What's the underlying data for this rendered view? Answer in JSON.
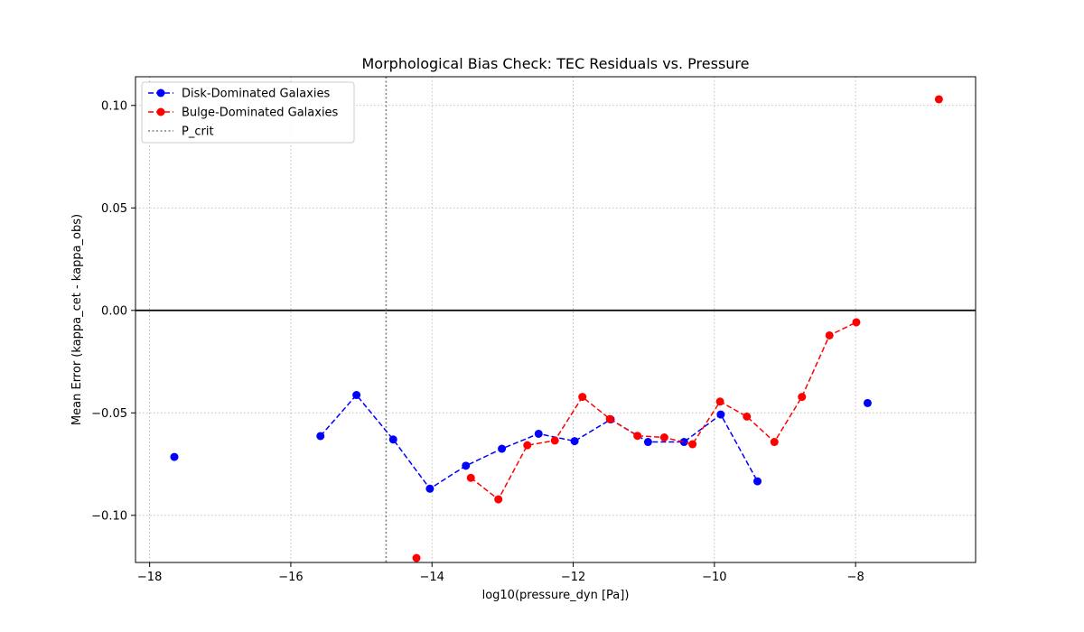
{
  "chart_data": {
    "type": "line",
    "title": "Morphological Bias Check: TEC Residuals vs. Pressure",
    "xlabel": "log10(pressure_dyn [Pa])",
    "ylabel": "Mean Error (kappa_cet - kappa_obs)",
    "xlim": [
      -18.2,
      -6.3
    ],
    "ylim": [
      -0.123,
      0.114
    ],
    "x_ticks": [
      -18,
      -16,
      -14,
      -12,
      -10,
      -8
    ],
    "x_tick_labels": [
      "−18",
      "−16",
      "−14",
      "−12",
      "−10",
      "−8"
    ],
    "y_ticks": [
      -0.1,
      -0.05,
      0.0,
      0.05,
      0.1
    ],
    "y_tick_labels": [
      "−0.10",
      "−0.05",
      "0.00",
      "0.05",
      "0.10"
    ],
    "grid": true,
    "legend_position": "top-left",
    "zero_line": 0.0,
    "vertical_line": {
      "name": "P_crit",
      "x": -14.65,
      "color": "#808080",
      "style": "dotted"
    },
    "series": [
      {
        "name": "Disk-Dominated Galaxies",
        "color": "#0000ff",
        "style": "dashed",
        "points": [
          [
            -17.65,
            -0.0715
          ],
          [
            -15.58,
            -0.0613
          ],
          [
            -15.07,
            -0.0413
          ],
          [
            -14.55,
            -0.063
          ],
          [
            -14.03,
            -0.087
          ],
          [
            -13.52,
            -0.0758
          ],
          [
            -13.01,
            -0.0675
          ],
          [
            -12.49,
            -0.0602
          ],
          [
            -11.98,
            -0.0638
          ],
          [
            -11.47,
            -0.0532
          ],
          [
            -10.94,
            -0.0642
          ],
          [
            -10.43,
            -0.0642
          ],
          [
            -9.91,
            -0.0508
          ],
          [
            -9.39,
            -0.0834
          ],
          [
            -7.83,
            -0.0452
          ]
        ],
        "segments": [
          [
            1,
            13
          ]
        ]
      },
      {
        "name": "Bulge-Dominated Galaxies",
        "color": "#ff0000",
        "style": "dashed",
        "points": [
          [
            -14.22,
            -0.1208
          ],
          [
            -13.45,
            -0.0817
          ],
          [
            -13.06,
            -0.0922
          ],
          [
            -12.65,
            -0.0658
          ],
          [
            -12.26,
            -0.0635
          ],
          [
            -11.87,
            -0.0422
          ],
          [
            -11.48,
            -0.053
          ],
          [
            -11.09,
            -0.0612
          ],
          [
            -10.71,
            -0.062
          ],
          [
            -10.31,
            -0.0653
          ],
          [
            -9.92,
            -0.0445
          ],
          [
            -9.54,
            -0.0518
          ],
          [
            -9.15,
            -0.0642
          ],
          [
            -8.76,
            -0.0422
          ],
          [
            -8.37,
            -0.0122
          ],
          [
            -7.99,
            -0.0058
          ],
          [
            -6.82,
            0.103
          ]
        ],
        "segments": [
          [
            1,
            15
          ]
        ]
      }
    ]
  }
}
